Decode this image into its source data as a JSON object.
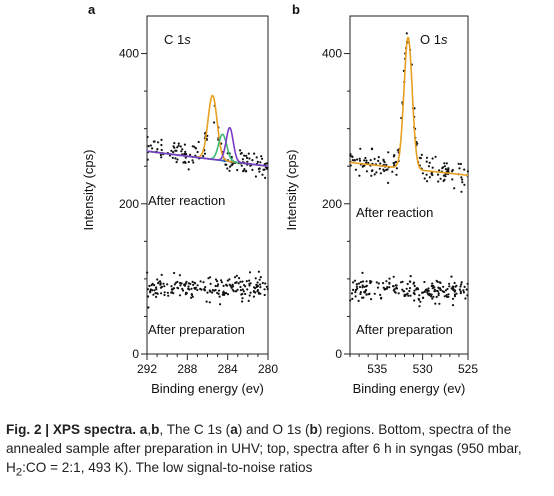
{
  "chart_data": [
    {
      "type": "scatter",
      "panel_label": "a",
      "region_label": "C 1s",
      "xlabel": "Binding energy (ev)",
      "ylabel": "Intensity (cps)",
      "x_reversed": true,
      "xlim": [
        292,
        280
      ],
      "ylim": [
        0,
        450
      ],
      "xticks": [
        292,
        288,
        284,
        280
      ],
      "yticks": [
        0,
        200,
        400
      ],
      "annotations": [
        "After reaction",
        "After preparation"
      ],
      "series": [
        {
          "label": "After reaction",
          "x_range": [
            292,
            280
          ],
          "baseline": [
            272,
            252
          ],
          "noise": 16,
          "count": 150,
          "peak": {
            "x": 285.5,
            "height": 60,
            "width": 0.5
          }
        },
        {
          "label": "After preparation",
          "x_range": [
            292,
            280
          ],
          "baseline": [
            88,
            88
          ],
          "noise": 15,
          "count": 200
        }
      ],
      "fit_components": [
        {
          "type": "baseline",
          "color": "#2f5fbf",
          "x": [
            292,
            280
          ],
          "y": [
            270,
            250
          ]
        },
        {
          "type": "gaussian",
          "color": "#e8a020",
          "center": 285.5,
          "height": 85,
          "width": 0.45
        },
        {
          "type": "gaussian",
          "color": "#3cb878",
          "center": 284.5,
          "height": 35,
          "width": 0.4
        },
        {
          "type": "gaussian",
          "color": "#7a3cc8",
          "center": 283.8,
          "height": 45,
          "width": 0.35
        }
      ]
    },
    {
      "type": "scatter",
      "panel_label": "b",
      "region_label": "O 1s",
      "xlabel": "Binding energy (ev)",
      "ylabel": "Intensity (cps)",
      "x_reversed": true,
      "xlim": [
        538,
        525
      ],
      "ylim": [
        0,
        450
      ],
      "xticks": [
        535,
        530,
        525
      ],
      "yticks": [
        0,
        200,
        400
      ],
      "annotations": [
        "After reaction",
        "After preparation"
      ],
      "series": [
        {
          "label": "After reaction",
          "x_range": [
            538,
            525
          ],
          "baseline": [
            255,
            238
          ],
          "noise": 18,
          "count": 160,
          "peak": {
            "x": 531.6,
            "height": 175,
            "width": 0.5
          }
        },
        {
          "label": "After preparation",
          "x_range": [
            538,
            525
          ],
          "baseline": [
            85,
            85
          ],
          "noise": 15,
          "count": 200
        }
      ],
      "fit_components": [
        {
          "type": "fit",
          "color": "#e8a020",
          "center": 531.6,
          "height": 175,
          "width": 0.45,
          "baseline": [
            255,
            238
          ]
        }
      ]
    }
  ],
  "caption": {
    "label": "Fig. 2 | XPS spectra.",
    "text_1": " ",
    "ab": "a",
    "comma": ",",
    "b": "b",
    "text_2": ", The C 1s (",
    "a2": "a",
    "text_3": ") and O 1s (",
    "b2": "b",
    "text_4": ") regions. Bottom, spectra of the annealed sample after preparation in UHV; top, spectra after 6 h in syngas (950 mbar, H",
    "sub": "2",
    "text_5": ":CO = 2:1, 493 K). The low signal-to-noise ratios"
  }
}
